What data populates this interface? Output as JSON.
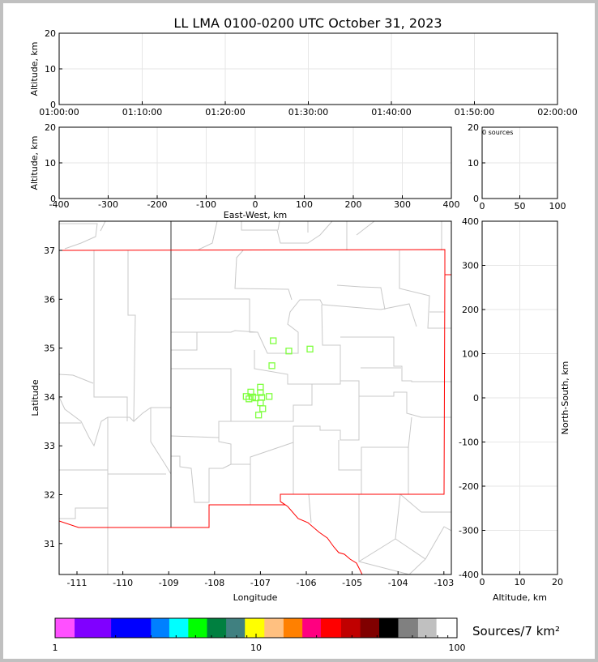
{
  "chart_data": [
    {
      "type": "scatter",
      "panel": "altitude-vs-time",
      "title": "LL LMA 0100-0200 UTC October 31, 2023",
      "ylabel": "Altitude, km",
      "ylim": [
        0,
        20
      ],
      "yticks": [
        "0",
        "10",
        "20"
      ],
      "xticks": [
        "01:00:00",
        "01:10:00",
        "01:20:00",
        "01:30:00",
        "01:40:00",
        "01:50:00",
        "02:00:00"
      ],
      "grid": true,
      "points": []
    },
    {
      "type": "scatter",
      "panel": "altitude-vs-east-west",
      "xlabel": "East-West, km",
      "ylabel": "Altitude, km",
      "xlim": [
        -400,
        400
      ],
      "ylim": [
        0,
        20
      ],
      "xticks": [
        "-400",
        "-300",
        "-200",
        "-100",
        "0",
        "100",
        "200",
        "300",
        "400"
      ],
      "yticks": [
        "0",
        "10",
        "20"
      ],
      "grid": true,
      "points": []
    },
    {
      "type": "bar",
      "panel": "altitude-histogram",
      "annotation": "0 sources",
      "xlim": [
        0,
        100
      ],
      "ylim": [
        0,
        20
      ],
      "xticks": [
        "0",
        "50",
        "100"
      ],
      "yticks": [
        "0",
        "10",
        "20"
      ],
      "grid": true,
      "values": []
    },
    {
      "type": "scatter",
      "panel": "plan-view-map",
      "xlabel": "Longitude",
      "ylabel": "Latitude",
      "xlim": [
        -111.4,
        -102.84
      ],
      "ylim": [
        30.37,
        37.6
      ],
      "xticks": [
        "-111",
        "-110",
        "-109",
        "-108",
        "-107",
        "-106",
        "-105",
        "-104",
        "-103"
      ],
      "yticks": [
        "31",
        "32",
        "33",
        "34",
        "35",
        "36",
        "37"
      ],
      "marker_color": "#7fff3f",
      "points": [
        {
          "lon": -106.72,
          "lat": 35.15
        },
        {
          "lon": -106.38,
          "lat": 34.94
        },
        {
          "lon": -105.92,
          "lat": 34.98
        },
        {
          "lon": -106.75,
          "lat": 34.64
        },
        {
          "lon": -107.0,
          "lat": 34.2
        },
        {
          "lon": -107.21,
          "lat": 34.1
        },
        {
          "lon": -107.0,
          "lat": 34.09
        },
        {
          "lon": -107.31,
          "lat": 34.01
        },
        {
          "lon": -107.25,
          "lat": 33.96
        },
        {
          "lon": -107.17,
          "lat": 34.0
        },
        {
          "lon": -107.1,
          "lat": 33.98
        },
        {
          "lon": -106.97,
          "lat": 33.99
        },
        {
          "lon": -106.81,
          "lat": 34.01
        },
        {
          "lon": -107.0,
          "lat": 33.88
        },
        {
          "lon": -106.95,
          "lat": 33.76
        },
        {
          "lon": -107.04,
          "lat": 33.63
        }
      ]
    },
    {
      "type": "scatter",
      "panel": "north-south-vs-altitude",
      "xlabel": "Altitude, km",
      "ylabel": "North-South, km",
      "xlim": [
        0,
        20
      ],
      "ylim": [
        -400,
        400
      ],
      "xticks": [
        "0",
        "10",
        "20"
      ],
      "yticks": [
        "-400",
        "-300",
        "-200",
        "-100",
        "0",
        "100",
        "200",
        "300",
        "400"
      ],
      "grid": true,
      "points": []
    }
  ],
  "colorbar": {
    "label": "Sources/7 km²",
    "scale": "log",
    "range": [
      1,
      100
    ],
    "tick_labels": [
      "1",
      "10",
      "100"
    ],
    "bounds": [
      1,
      1.25,
      1.9,
      3,
      3.7,
      4.6,
      5.7,
      7.1,
      8.8,
      11,
      13.7,
      17,
      21,
      26.5,
      33,
      41,
      51,
      64,
      79,
      100
    ],
    "colors": [
      "#ff50ff",
      "#8000ff",
      "#0000ff",
      "#0080ff",
      "#00ffff",
      "#00ff00",
      "#008040",
      "#408080",
      "#ffff00",
      "#ffc080",
      "#ff8000",
      "#ff0080",
      "#ff0000",
      "#c00000",
      "#800000",
      "#000000",
      "#808080",
      "#c0c0c0",
      "#ffffff"
    ]
  },
  "colors": {
    "state_border": "#ff0000",
    "county_lines": "#c8c8c8",
    "grid": "#e6e6e6"
  }
}
